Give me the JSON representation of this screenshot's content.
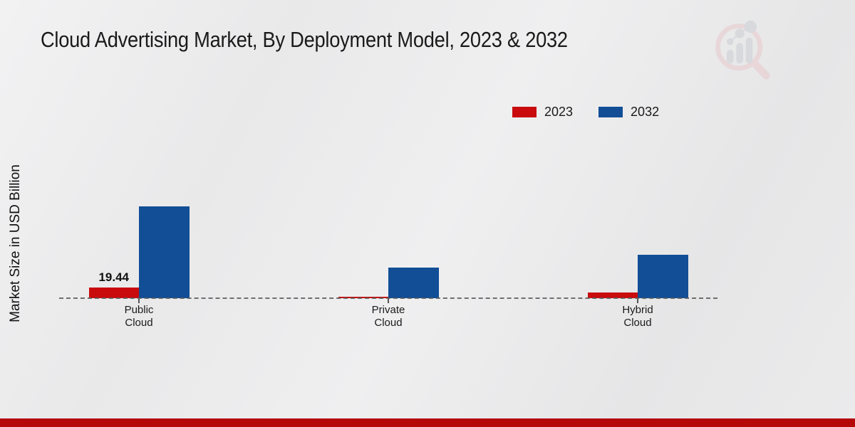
{
  "colors": {
    "red_2023": "#c90b0d",
    "blue_2032": "#114e96",
    "bottom_band": "#b40809",
    "baseline_dash": "#5a5a5a"
  },
  "logo": {
    "name": "market-research-future-watermark"
  },
  "chart_data": {
    "type": "bar",
    "title": "Cloud Advertising Market, By Deployment Model, 2023 & 2032",
    "ylabel": "Market Size in USD Billion",
    "xlabel": "",
    "categories": [
      "Public Cloud",
      "Private Cloud",
      "Hybrid Cloud"
    ],
    "series": [
      {
        "name": "2023",
        "color": "#c90b0d",
        "values": [
          19.44,
          3.1,
          10.5
        ]
      },
      {
        "name": "2032",
        "color": "#114e96",
        "values": [
          167,
          56,
          79
        ]
      }
    ],
    "data_labels": [
      {
        "series": "2023",
        "category": "Public Cloud",
        "text": "19.44"
      }
    ],
    "ylim": [
      0,
      180
    ],
    "grid": false,
    "legend_position": "top-right",
    "baseline_style": "dashed"
  }
}
